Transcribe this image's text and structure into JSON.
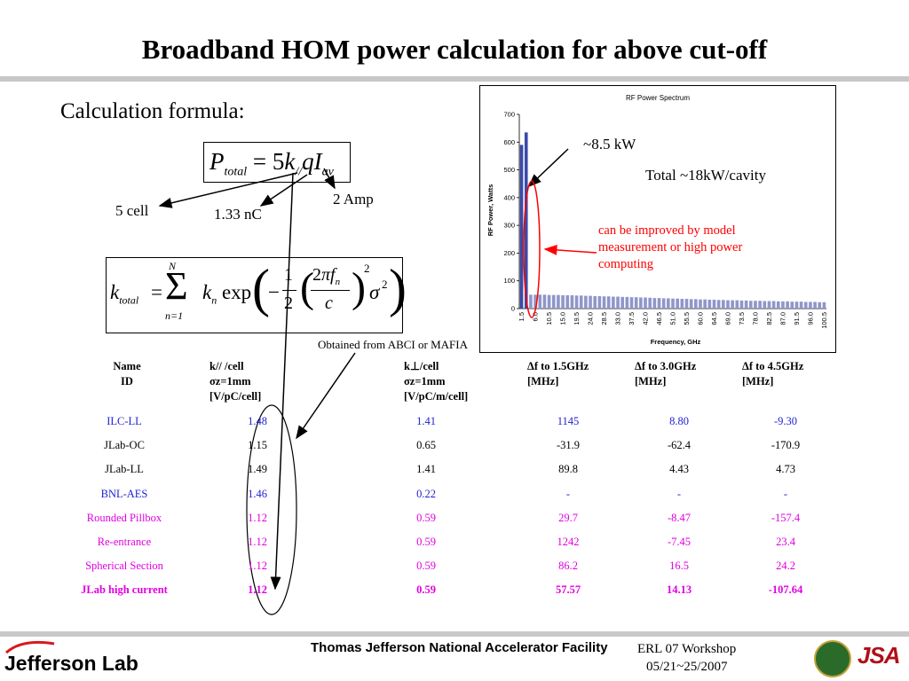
{
  "slide": {
    "title": "Broadband HOM power calculation for above cut-off",
    "calc_label": "Calculation formula:",
    "annotations": {
      "five_cell": "5 cell",
      "charge": "1.33 nC",
      "current": "2 Amp",
      "abci": "Obtained from ABCI or MAFIA",
      "peak": "~8.5 kW",
      "total": "Total ~18kW/cavity",
      "improve": "can be improved by model measurement or high power computing"
    },
    "colors": {
      "blue": "#1f1fd0",
      "magenta": "#e000e0",
      "red": "#ff0000",
      "bar": "#8f96c9",
      "grey_bar": "#c8c8c8"
    }
  },
  "table": {
    "headers": [
      "Name ID",
      "k// /cell σz=1mm [V/pC/cell]",
      "k⊥/cell σz=1mm [V/pC/m/cell]",
      "Δf to 1.5GHz [MHz]",
      "Δf to 3.0GHz [MHz]",
      "Δf to 4.5GHz [MHz]"
    ],
    "rows": [
      {
        "name": "ILC-LL",
        "k_par": "1.48",
        "k_perp": "1.41",
        "d15": "1145",
        "d30": "8.80",
        "d45": "-9.30",
        "color": "blue"
      },
      {
        "name": "JLab-OC",
        "k_par": "1.15",
        "k_perp": "0.65",
        "d15": "-31.9",
        "d30": "-62.4",
        "d45": "-170.9",
        "color": "black"
      },
      {
        "name": "JLab-LL",
        "k_par": "1.49",
        "k_perp": "1.41",
        "d15": "89.8",
        "d30": "4.43",
        "d45": "4.73",
        "color": "black"
      },
      {
        "name": "BNL-AES",
        "k_par": "1.46",
        "k_perp": "0.22",
        "d15": "-",
        "d30": "-",
        "d45": "-",
        "color": "blue"
      },
      {
        "name": "Rounded Pillbox",
        "k_par": "1.12",
        "k_perp": "0.59",
        "d15": "29.7",
        "d30": "-8.47",
        "d45": "-157.4",
        "color": "magenta"
      },
      {
        "name": "Re-entrance",
        "k_par": "1.12",
        "k_perp": "0.59",
        "d15": "1242",
        "d30": "-7.45",
        "d45": "23.4",
        "color": "magenta"
      },
      {
        "name": "Spherical Section",
        "k_par": "1.12",
        "k_perp": "0.59",
        "d15": "86.2",
        "d30": "16.5",
        "d45": "24.2",
        "color": "magenta"
      },
      {
        "name": "JLab high current",
        "k_par": "1.12",
        "k_perp": "0.59",
        "d15": "57.57",
        "d30": "14.13",
        "d45": "-107.64",
        "color": "magenta",
        "bold": true
      }
    ]
  },
  "footer": {
    "org": "Jefferson Lab",
    "facility": "Thomas Jefferson National Accelerator Facility",
    "workshop": "ERL 07 Workshop",
    "dates": "05/21~25/2007",
    "jsa": "JSA"
  },
  "chart_data": {
    "type": "bar",
    "title": "RF Power Spectrum",
    "xlabel": "Frequency, GHz",
    "ylabel": "RF Power, Watts",
    "ylim": [
      0,
      700
    ],
    "yticks": [
      0,
      100,
      200,
      300,
      400,
      500,
      600,
      700
    ],
    "xtick_labels": [
      "1.5",
      "6.0",
      "10.5",
      "15.0",
      "19.5",
      "24.0",
      "28.5",
      "33.0",
      "37.5",
      "42.0",
      "46.5",
      "51.0",
      "55.5",
      "60.0",
      "64.5",
      "69.0",
      "73.5",
      "78.0",
      "82.5",
      "87.0",
      "91.5",
      "96.0",
      "100.5"
    ],
    "categories": [
      "1.5",
      "3.0",
      "4.5",
      "6.0",
      "7.5",
      "9.0",
      "10.5",
      "12.0",
      "13.5",
      "15.0",
      "16.5",
      "18.0",
      "19.5",
      "21.0",
      "22.5",
      "24.0",
      "25.5",
      "27.0",
      "28.5",
      "30.0",
      "31.5",
      "33.0",
      "34.5",
      "36.0",
      "37.5",
      "39.0",
      "40.5",
      "42.0",
      "43.5",
      "45.0",
      "46.5",
      "48.0",
      "49.5",
      "51.0",
      "52.5",
      "54.0",
      "55.5",
      "57.0",
      "58.5",
      "60.0",
      "61.5",
      "63.0",
      "64.5",
      "66.0",
      "67.5",
      "69.0",
      "70.5",
      "72.0",
      "73.5",
      "75.0",
      "76.5",
      "78.0",
      "79.5",
      "81.0",
      "82.5",
      "84.0",
      "85.5",
      "87.0",
      "88.5",
      "90.0",
      "91.5",
      "93.0",
      "94.5",
      "96.0",
      "97.5",
      "99.0",
      "100.5"
    ],
    "values": [
      590,
      635,
      50,
      50,
      50,
      50,
      49,
      49,
      49,
      48,
      48,
      48,
      47,
      47,
      46,
      46,
      45,
      45,
      44,
      44,
      43,
      43,
      42,
      42,
      41,
      41,
      40,
      40,
      39,
      38,
      38,
      37,
      37,
      36,
      36,
      35,
      35,
      34,
      34,
      33,
      33,
      32,
      32,
      31,
      31,
      30,
      30,
      30,
      29,
      29,
      28,
      28,
      28,
      27,
      27,
      27,
      26,
      26,
      26,
      25,
      25,
      25,
      24,
      24,
      24,
      23,
      23
    ],
    "grid": false,
    "legend": "none"
  }
}
